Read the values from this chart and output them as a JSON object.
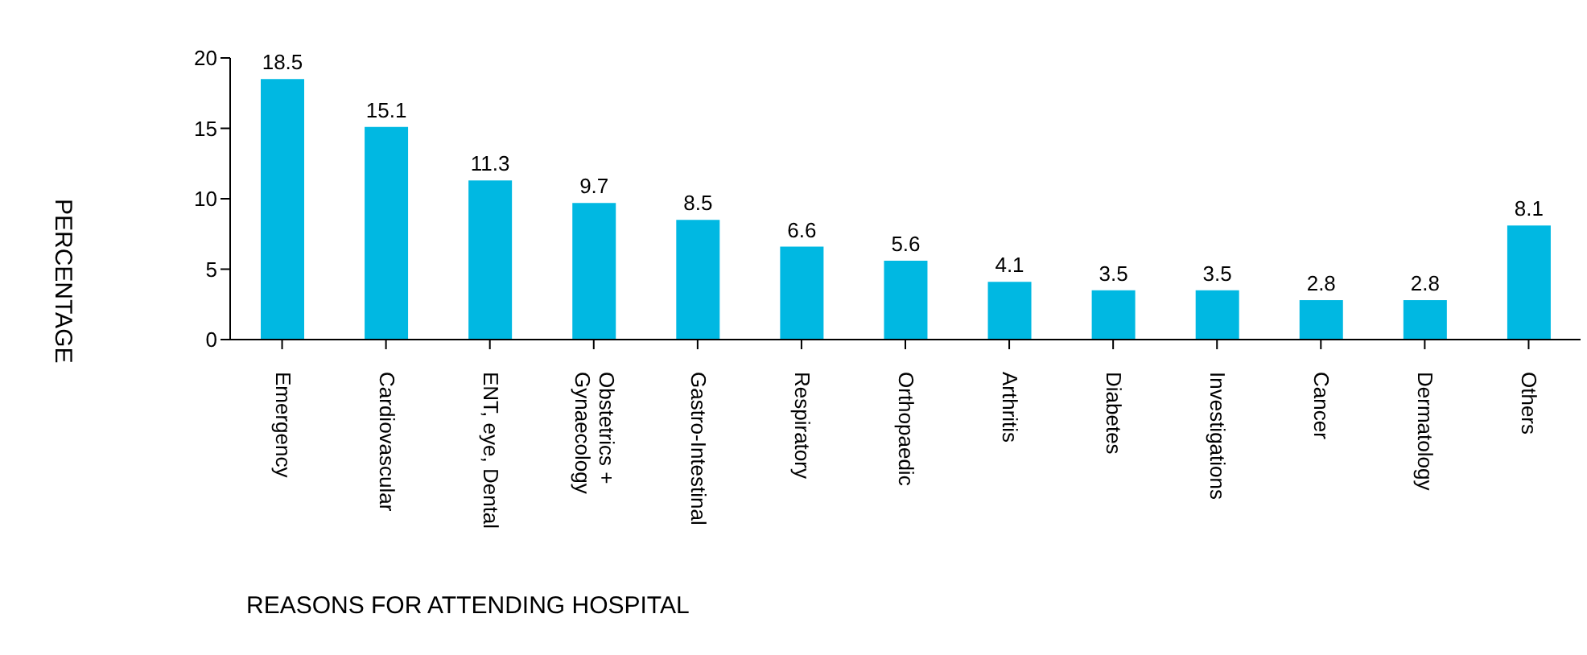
{
  "chart_data": {
    "type": "bar",
    "xlabel": "REASONS FOR ATTENDING HOSPITAL",
    "ylabel": "PERCENTAGE",
    "categories": [
      "Emergency",
      "Cardiovascular",
      "ENT, eye, Dental",
      "Obstetrics + Gynaecology",
      "Gastro-Intestinal",
      "Respiratory",
      "Orthopaedic",
      "Arthritis",
      "Diabetes",
      "Investigations",
      "Cancer",
      "Dermatology",
      "Others"
    ],
    "values": [
      18.5,
      15.1,
      11.3,
      9.7,
      8.5,
      6.6,
      5.6,
      4.1,
      3.5,
      3.5,
      2.8,
      2.8,
      8.1
    ],
    "color": "#00b8e2",
    "ylim": [
      0,
      20
    ],
    "yticks": [
      0,
      5,
      10,
      15,
      20
    ],
    "data_labels": true,
    "grid": false,
    "legend": false
  }
}
